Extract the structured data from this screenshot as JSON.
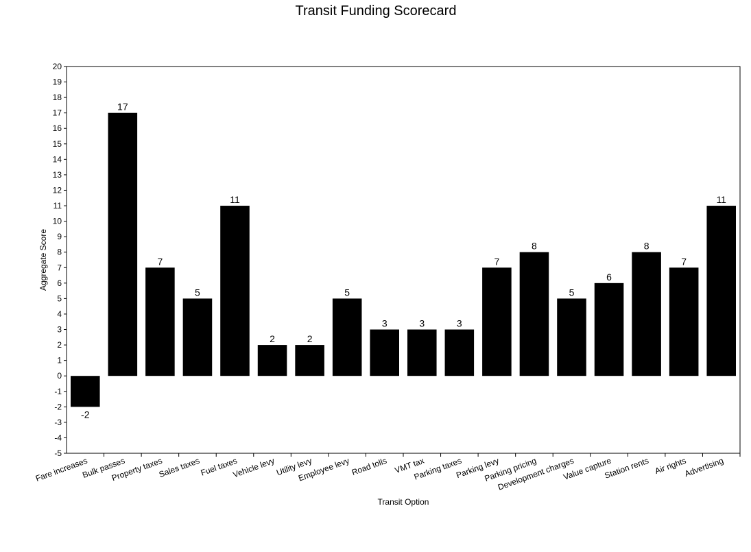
{
  "chart_data": {
    "type": "bar",
    "title": "Transit Funding Scorecard",
    "xlabel": "Transit Option",
    "ylabel": "Aggregate Score",
    "ylim": [
      -5,
      20
    ],
    "y_tick_step": 1,
    "grid": false,
    "legend": "none",
    "bar_color": "#000000",
    "categories": [
      "Fare increases",
      "Bulk passes",
      "Property taxes",
      "Sales taxes",
      "Fuel taxes",
      "Vehicle levy",
      "Utility levy",
      "Employee levy",
      "Road tolls",
      "VMT tax",
      "Parking taxes",
      "Parking levy",
      "Parking pricing",
      "Development charges",
      "Value capture",
      "Station rents",
      "Air rights",
      "Advertising"
    ],
    "values": [
      -2,
      17,
      7,
      5,
      11,
      2,
      2,
      5,
      3,
      3,
      3,
      7,
      8,
      5,
      6,
      8,
      7,
      11
    ]
  }
}
